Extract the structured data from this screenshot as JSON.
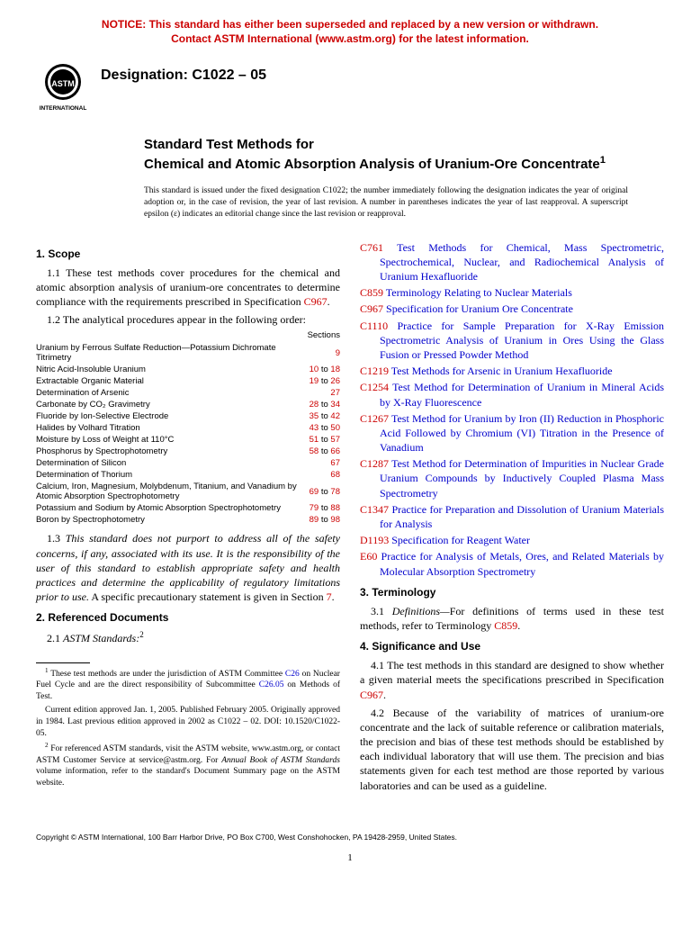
{
  "notice": {
    "line1": "NOTICE: This standard has either been superseded and replaced by a new version or withdrawn.",
    "line2": "Contact ASTM International (www.astm.org) for the latest information.",
    "color": "#cc0000"
  },
  "logo": {
    "label": "INTERNATIONAL"
  },
  "designation": "Designation: C1022 – 05",
  "title": {
    "prefix": "Standard Test Methods for",
    "main": "Chemical and Atomic  Absorption Analysis of Uranium-Ore Concentrate",
    "sup": "1"
  },
  "issued_note": "This standard is issued under the fixed designation C1022; the number immediately following the designation indicates the year of original adoption or, in the case of revision, the year of last revision. A number in parentheses indicates the year of last reapproval. A superscript epsilon (ε) indicates an editorial change since the last revision or reapproval.",
  "section1": {
    "head": "1. Scope",
    "p1a": "1.1 These test methods cover procedures for the chemical and atomic absorption analysis of uranium-ore concentrates to determine compliance with the requirements prescribed in Specification ",
    "p1_link": "C967",
    "p1b": ".",
    "p2": "1.2 The analytical procedures appear in the following order:",
    "sections_label": "Sections",
    "procedures": [
      {
        "name": "Uranium by Ferrous Sulfate Reduction—Potassium Dichromate Titrimetry",
        "range": "9",
        "indent": true
      },
      {
        "name": "Nitric Acid-Insoluble Uranium",
        "range": "10 to 18"
      },
      {
        "name": "Extractable Organic Material",
        "range": "19 to 26"
      },
      {
        "name": "Determination of Arsenic",
        "range": "27"
      },
      {
        "name": "Carbonate by CO₂ Gravimetry",
        "range": "28 to 34"
      },
      {
        "name": "Fluoride by Ion-Selective Electrode",
        "range": "35 to 42"
      },
      {
        "name": "Halides by Volhard Titration",
        "range": "43 to 50"
      },
      {
        "name": "Moisture by Loss of Weight at 110°C",
        "range": "51 to 57"
      },
      {
        "name": "Phosphorus by Spectrophotometry",
        "range": "58 to 66"
      },
      {
        "name": "Determination of Silicon",
        "range": "67"
      },
      {
        "name": "Determination of Thorium",
        "range": "68"
      },
      {
        "name": "Calcium, Iron, Magnesium, Molybdenum, Titanium, and Vanadium by Atomic Absorption Spectrophotometry",
        "range": "69 to 78",
        "indent": true
      },
      {
        "name": "Potassium and Sodium by Atomic Absorption Spectrophotometry",
        "range": "79 to 88",
        "indent": true
      },
      {
        "name": "Boron by Spectrophotometry",
        "range": "89 to 98"
      }
    ],
    "p3a": "1.3 ",
    "p3_italic": "This standard does not purport to address all of the safety concerns, if any, associated with its use. It is the responsibility of the user of this standard to establish appropriate safety and health practices and determine the applicability of regulatory limitations prior to use.",
    "p3b": " A specific precautionary statement is given in Section ",
    "p3_link": "7",
    "p3c": "."
  },
  "section2": {
    "head": "2. Referenced Documents",
    "p1": "2.1 ",
    "p1_italic": "ASTM Standards:",
    "sup": "2",
    "standards": [
      {
        "code": "C761",
        "title": "Test Methods for Chemical, Mass Spectrometric, Spectrochemical, Nuclear, and Radiochemical Analysis of Uranium Hexafluoride"
      },
      {
        "code": "C859",
        "title": "Terminology Relating to Nuclear Materials"
      },
      {
        "code": "C967",
        "title": "Specification for Uranium Ore Concentrate"
      },
      {
        "code": "C1110",
        "title": "Practice for Sample Preparation for X-Ray Emission Spectrometric Analysis of Uranium in Ores Using the Glass Fusion or Pressed Powder Method"
      },
      {
        "code": "C1219",
        "title": "Test Methods for Arsenic in Uranium Hexafluoride"
      },
      {
        "code": "C1254",
        "title": "Test Method for Determination of Uranium in Mineral Acids by X-Ray Fluorescence"
      },
      {
        "code": "C1267",
        "title": "Test Method for Uranium by Iron (II) Reduction in Phosphoric Acid Followed by Chromium (VI) Titration in the Presence of Vanadium"
      },
      {
        "code": "C1287",
        "title": "Test Method for Determination of Impurities in Nuclear Grade Uranium Compounds by Inductively Coupled Plasma Mass Spectrometry"
      },
      {
        "code": "C1347",
        "title": "Practice for Preparation and Dissolution of Uranium Materials for Analysis"
      },
      {
        "code": "D1193",
        "title": "Specification for Reagent Water"
      },
      {
        "code": "E60",
        "title": "Practice for Analysis of Metals, Ores, and Related Materials by Molecular Absorption Spectrometry"
      }
    ]
  },
  "section3": {
    "head": "3. Terminology",
    "p1a": "3.1 ",
    "p1_italic": "Definitions—",
    "p1b": "For definitions of terms used in these test methods, refer to Terminology ",
    "p1_link": "C859",
    "p1c": "."
  },
  "section4": {
    "head": "4. Significance and Use",
    "p1a": "4.1 The test methods in this standard are designed to show whether a given material meets the specifications prescribed in Specification ",
    "p1_link": "C967",
    "p1b": ".",
    "p2": "4.2 Because of the variability of matrices of uranium-ore concentrate and the lack of suitable reference or calibration materials, the precision and bias of these test methods should be established by each individual laboratory that will use them. The precision and bias statements given for each test method are those reported by various laboratories and can be used as a guideline."
  },
  "footnotes": {
    "f1a": "These test methods are under the jurisdiction of ASTM Committee ",
    "f1_link1": "C26",
    "f1b": " on Nuclear Fuel Cycle and are the direct responsibility of Subcommittee ",
    "f1_link2": "C26.05",
    "f1c": " on Methods of Test.",
    "f1d": "Current edition approved Jan. 1, 2005. Published February 2005. Originally approved in 1984. Last previous edition approved in 2002 as C1022 – 02. DOI: 10.1520/C1022-05.",
    "f2a": "For referenced ASTM standards, visit the ASTM website, www.astm.org, or contact ASTM Customer Service at service@astm.org. For ",
    "f2_italic": "Annual Book of ASTM Standards",
    "f2b": " volume information, refer to the standard's Document Summary page on the ASTM website."
  },
  "copyright": "Copyright © ASTM International, 100 Barr Harbor Drive, PO Box C700, West Conshohocken, PA 19428-2959, United States.",
  "pagenum": "1",
  "colors": {
    "link_red": "#cc0000",
    "link_blue": "#0000cc"
  }
}
